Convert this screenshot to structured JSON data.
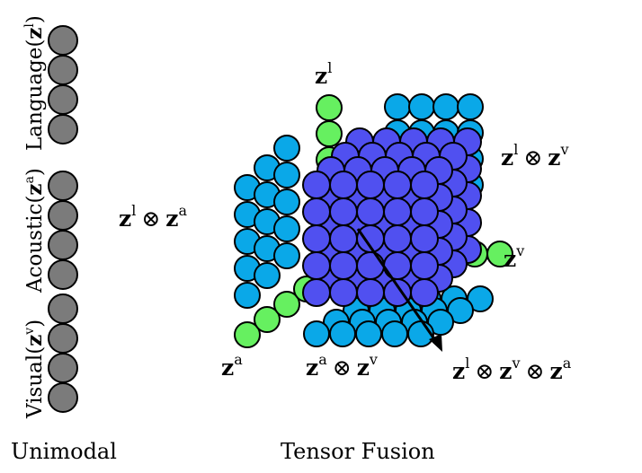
{
  "captions": {
    "unimodal": "Unimodal",
    "tensor_fusion": "Tensor Fusion"
  },
  "side_labels": {
    "language": {
      "word": "Language(",
      "sym": "z",
      "sup": "l",
      "close": ")"
    },
    "acoustic": {
      "word": "Acoustic(",
      "sym": "z",
      "sup": "a",
      "close": ")"
    },
    "visual": {
      "word": "Visual(",
      "sym": "z",
      "sup": "v",
      "close": ")"
    }
  },
  "symbols": {
    "bold_z": "z",
    "otimes": "⊗",
    "sup_l": "l",
    "sup_a": "a",
    "sup_v": "v"
  },
  "colors": {
    "unimodal": "#7b7b7b",
    "unimodal_extra": "#c8f0c0",
    "green": "#66f060",
    "light_blue": "#0aa8e8",
    "purple": "#5050f0",
    "outline": "#000000"
  }
}
